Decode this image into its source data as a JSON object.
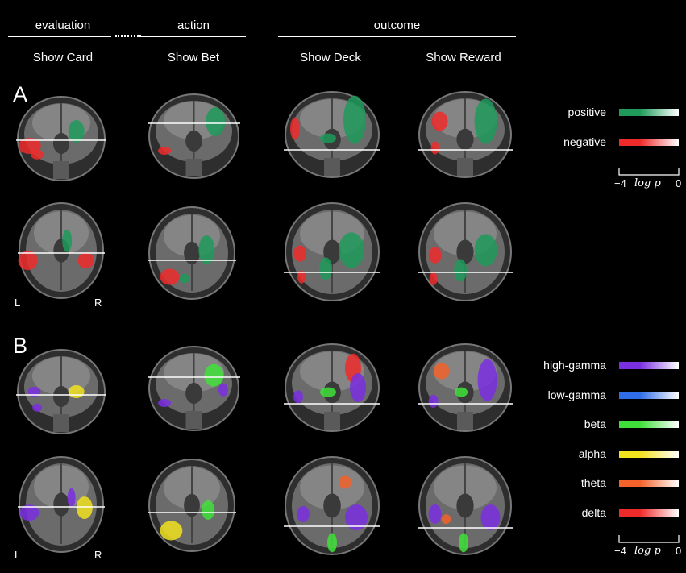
{
  "header": {
    "groups": [
      {
        "label": "evaluation"
      },
      {
        "label": "action"
      },
      {
        "label": "outcome"
      }
    ],
    "columns": [
      {
        "label": "Show Card"
      },
      {
        "label": "Show Bet"
      },
      {
        "label": "Show Deck"
      },
      {
        "label": "Show Reward"
      }
    ]
  },
  "panels": [
    {
      "letter": "A",
      "legend": [
        {
          "label": "positive",
          "color": "#1f9a5a"
        },
        {
          "label": "negative",
          "color": "#ef2a2a"
        }
      ],
      "scale": {
        "min": "−4",
        "mid": "log p",
        "max": "0"
      }
    },
    {
      "letter": "B",
      "legend": [
        {
          "label": "high-gamma",
          "color": "#7a2fe0"
        },
        {
          "label": "low-gamma",
          "color": "#2f6ee8"
        },
        {
          "label": "beta",
          "color": "#3fe03a"
        },
        {
          "label": "alpha",
          "color": "#f2e21e"
        },
        {
          "label": "theta",
          "color": "#f2622a"
        },
        {
          "label": "delta",
          "color": "#ef2a2a"
        }
      ],
      "scale": {
        "min": "−4",
        "mid": "log p",
        "max": "0"
      }
    }
  ],
  "orientation": {
    "left": "L",
    "right": "R"
  }
}
